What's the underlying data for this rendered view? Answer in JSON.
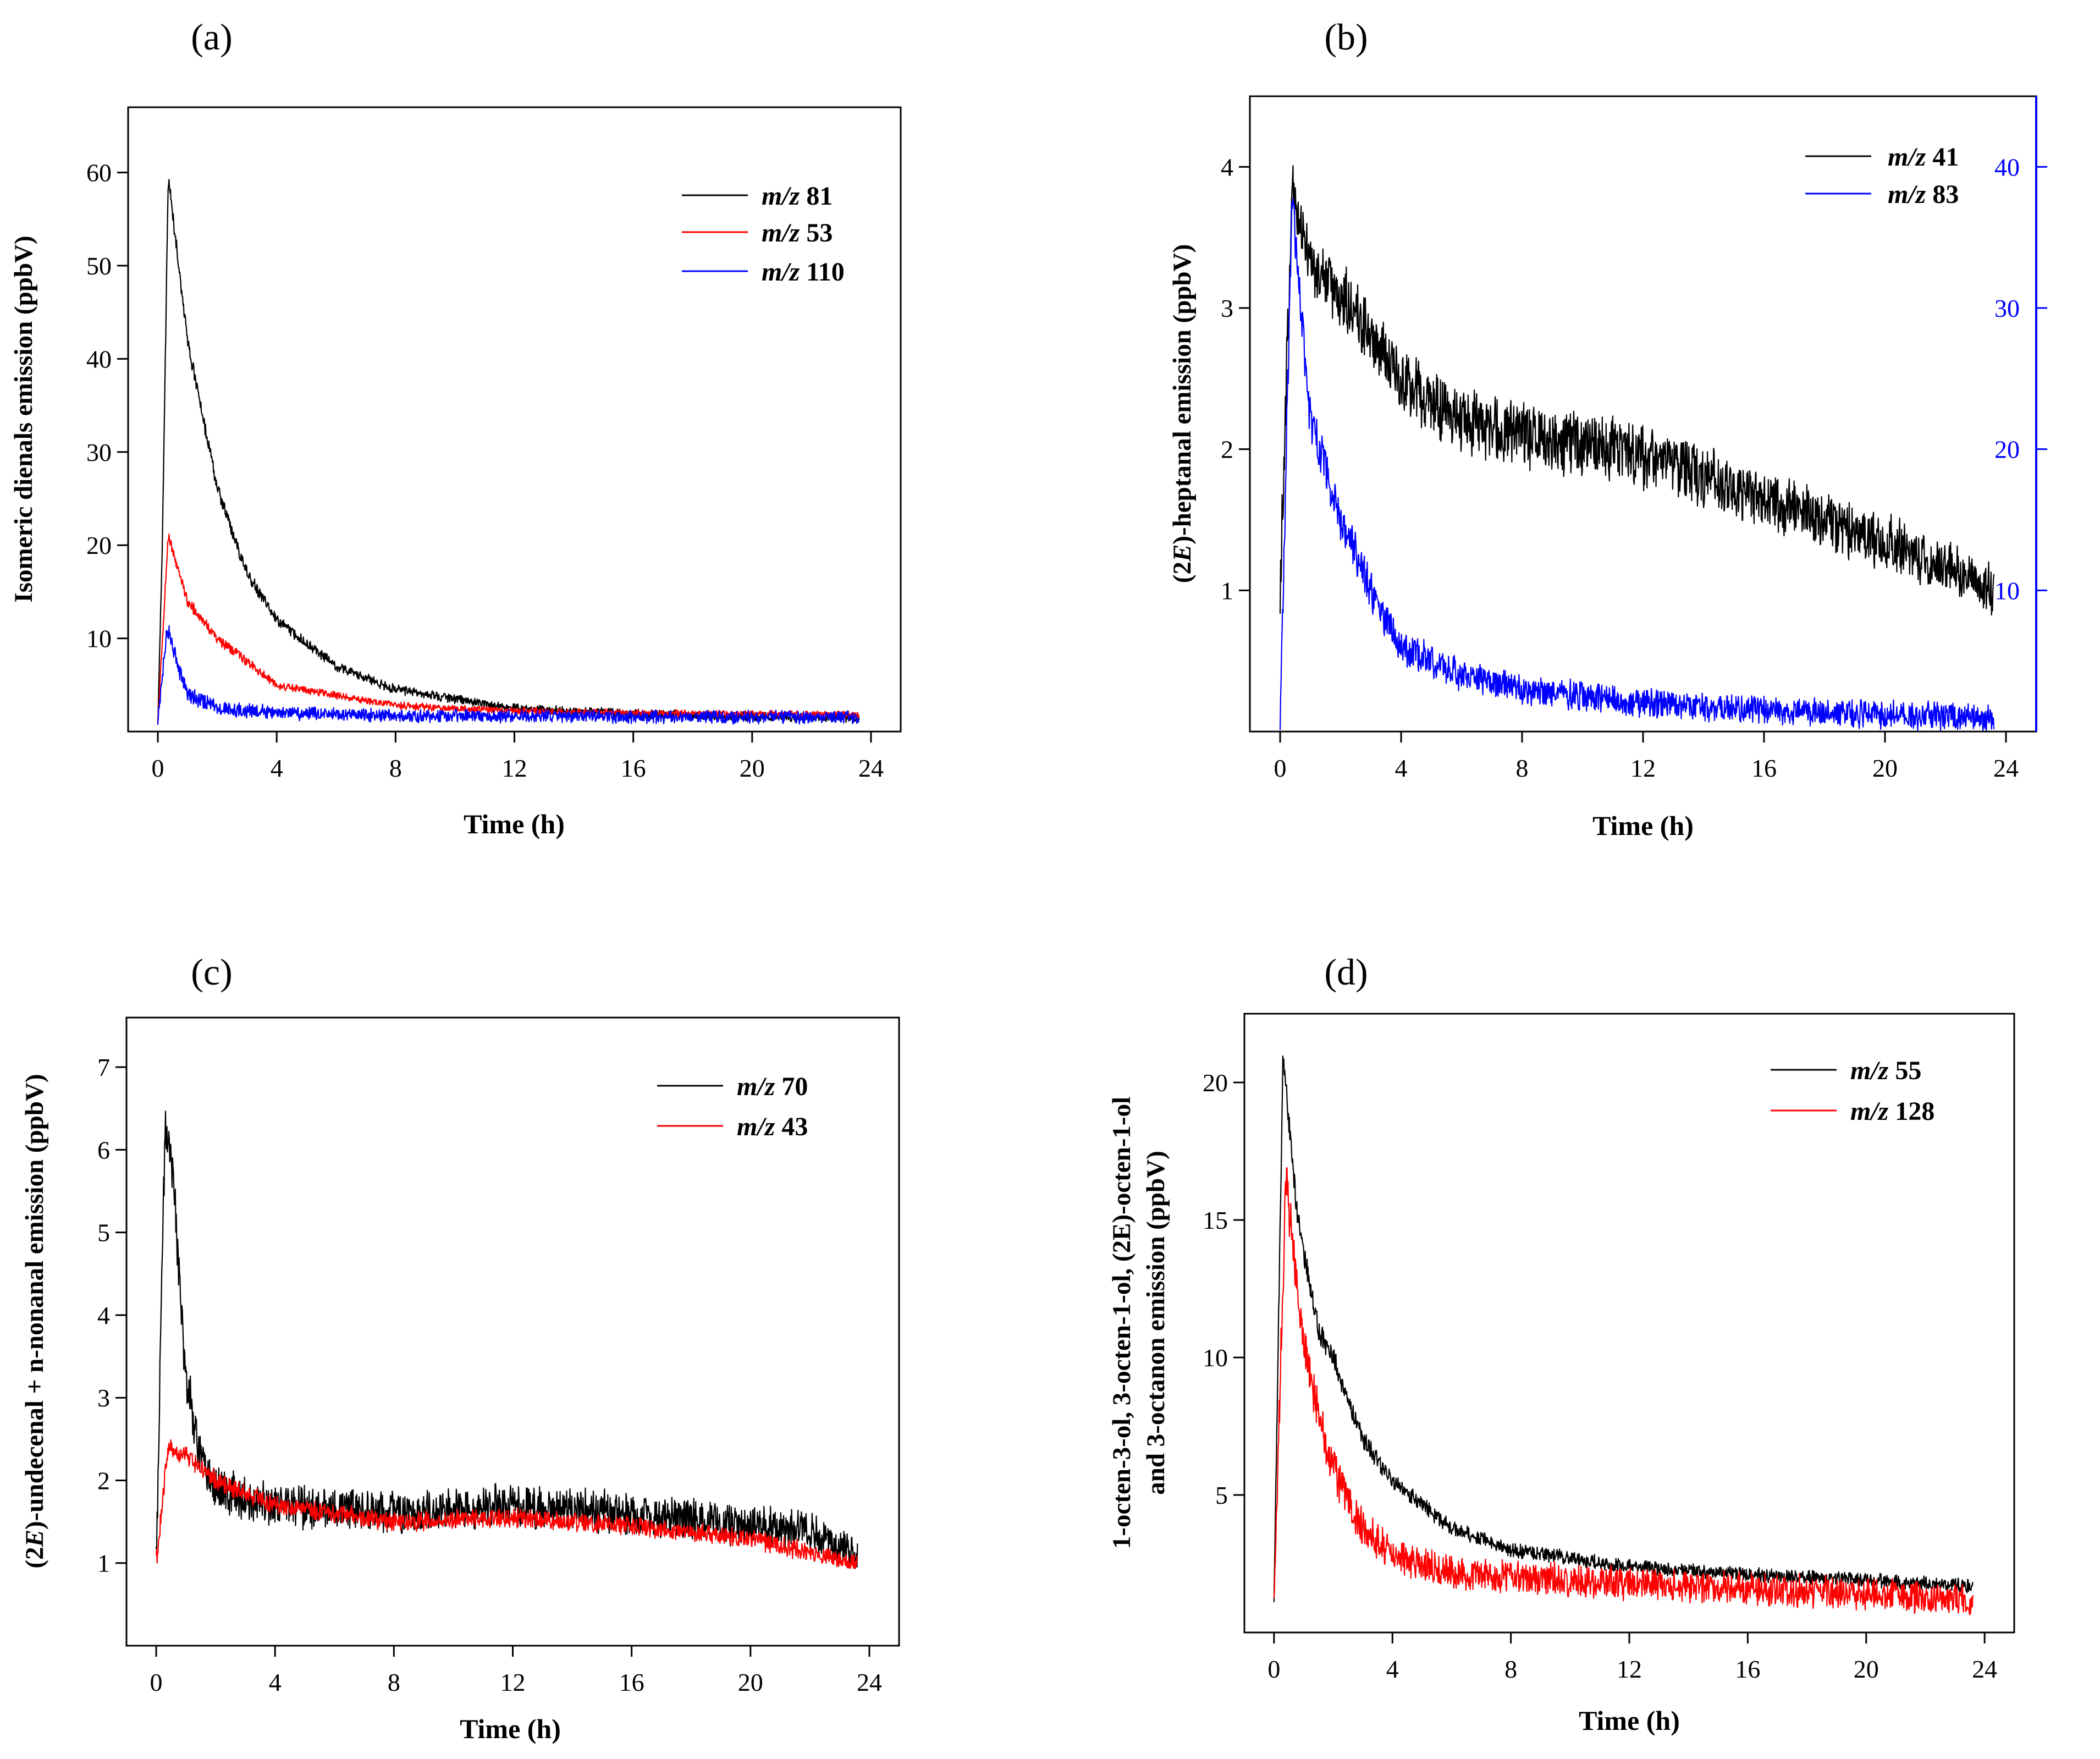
{
  "chart_data": [
    {
      "panel_label": "(a)",
      "type": "line",
      "xlabel": "Time (h)",
      "ylabel": "Isomeric dienals emission (ppbV)",
      "xlim": [
        -1,
        25
      ],
      "ylim": [
        0,
        67
      ],
      "xticks": [
        0,
        4,
        8,
        12,
        16,
        20,
        24
      ],
      "yticks": [
        10,
        20,
        30,
        40,
        50,
        60
      ],
      "legend_position": "top-right",
      "series": [
        {
          "name_prefix": "m/z",
          "name_value": "81",
          "color": "#000000",
          "axis": "left",
          "baseline": 1.0,
          "peak": 59.5,
          "peak_time": 0.35,
          "end": 1.5,
          "tau": 2.2,
          "noise": 0.7,
          "x": [
            0,
            0.15,
            0.35,
            1,
            2,
            3,
            4,
            6,
            8,
            12,
            16,
            20,
            23.6
          ],
          "y": [
            1,
            20,
            59.5,
            42,
            26,
            17,
            12,
            7,
            4.5,
            2.5,
            1.9,
            1.6,
            1.5
          ]
        },
        {
          "name_prefix": "m/z",
          "name_value": "53",
          "color": "#ff0000",
          "axis": "left",
          "baseline": 1.0,
          "peak": 21,
          "peak_time": 0.35,
          "end": 1.8,
          "tau": 2.0,
          "noise": 0.5,
          "x": [
            0,
            0.35,
            1,
            2,
            4,
            8,
            12,
            16,
            20,
            23.6
          ],
          "y": [
            1,
            21,
            14,
            10,
            5,
            2.8,
            2.2,
            2.0,
            1.9,
            1.8
          ]
        },
        {
          "name_prefix": "m/z",
          "name_value": "110",
          "color": "#0000ff",
          "axis": "left",
          "baseline": 1.0,
          "peak": 11,
          "peak_time": 0.3,
          "end": 1.5,
          "tau": 0.7,
          "noise": 0.9,
          "x": [
            0,
            0.3,
            1,
            2,
            4,
            8,
            16,
            23.6
          ],
          "y": [
            1,
            11,
            4,
            2.5,
            2,
            1.7,
            1.6,
            1.5
          ]
        }
      ]
    },
    {
      "panel_label": "(b)",
      "type": "line",
      "xlabel": "Time (h)",
      "ylabel_prefix": "(2",
      "ylabel_italic": "E",
      "ylabel_suffix": ")-heptanal emission (ppbV)",
      "xlim": [
        -1,
        25
      ],
      "ylim": [
        0,
        4.5
      ],
      "y2lim": [
        0,
        45
      ],
      "xticks": [
        0,
        4,
        8,
        12,
        16,
        20,
        24
      ],
      "yticks": [
        1,
        2,
        3,
        4
      ],
      "y2ticks": [
        10,
        20,
        30,
        40
      ],
      "y2color": "#0000ff",
      "legend_position": "top-right",
      "series": [
        {
          "name_prefix": "m/z",
          "name_value": "41",
          "color": "#000000",
          "axis": "left",
          "baseline": 1.0,
          "peak": 3.9,
          "peak_time": 0.4,
          "end": 1.0,
          "tau": 0,
          "noise": 0.2,
          "x": [
            0,
            0.4,
            1,
            2,
            4,
            6,
            8,
            12,
            16,
            20,
            23.6
          ],
          "y": [
            1.0,
            3.9,
            3.3,
            3.1,
            2.5,
            2.2,
            2.1,
            1.95,
            1.65,
            1.35,
            1.0
          ]
        },
        {
          "name_prefix": "m/z",
          "name_value": "83",
          "color": "#0000ff",
          "axis": "right",
          "baseline": 1,
          "peak": 38,
          "peak_time": 0.4,
          "end": 1,
          "tau": 1.6,
          "noise": 1.5,
          "x": [
            0,
            0.4,
            1,
            2,
            3,
            4,
            6,
            8,
            12,
            16,
            20,
            23.6
          ],
          "y": [
            1,
            38,
            22,
            15,
            10,
            6,
            4,
            3,
            2,
            1.5,
            1.2,
            1
          ]
        }
      ]
    },
    {
      "panel_label": "(c)",
      "type": "line",
      "xlabel": "Time (h)",
      "ylabel_prefix": "(2",
      "ylabel_italic": "E",
      "ylabel_suffix": ")-undecenal + n-nonanal emission (ppbV)",
      "xlim": [
        -1,
        25
      ],
      "ylim": [
        0,
        7.6
      ],
      "xticks": [
        0,
        4,
        8,
        12,
        16,
        20,
        24
      ],
      "yticks": [
        1,
        2,
        3,
        4,
        5,
        6,
        7
      ],
      "legend_position": "top-right",
      "series": [
        {
          "name_prefix": "m/z",
          "name_value": "70",
          "color": "#000000",
          "axis": "left",
          "baseline": 1.0,
          "peak": 6.3,
          "peak_time": 0.3,
          "end": 1.1,
          "tau": 0,
          "noise": 0.28,
          "x": [
            0,
            0.3,
            0.6,
            1,
            1.5,
            2,
            4,
            8,
            12,
            16,
            20,
            22,
            23.6
          ],
          "y": [
            1.0,
            6.3,
            5.5,
            3.2,
            2.3,
            1.9,
            1.7,
            1.6,
            1.7,
            1.6,
            1.45,
            1.4,
            1.1
          ]
        },
        {
          "name_prefix": "m/z",
          "name_value": "43",
          "color": "#ff0000",
          "axis": "left",
          "baseline": 1.0,
          "peak": 2.4,
          "peak_time": 0.4,
          "end": 1.0,
          "tau": 0,
          "noise": 0.1,
          "x": [
            0,
            0.4,
            1,
            2,
            4,
            8,
            12,
            16,
            20,
            23.6
          ],
          "y": [
            1.0,
            2.4,
            2.3,
            2.0,
            1.7,
            1.5,
            1.55,
            1.45,
            1.3,
            1.0
          ]
        }
      ]
    },
    {
      "panel_label": "(d)",
      "type": "line",
      "xlabel": "Time (h)",
      "ylabel_line1": "1-octen-3-ol, 3-octen-1-ol, (2E)-octen-1-ol",
      "ylabel_line2": "and 3-octanon emission (ppbV)",
      "xlim": [
        -1,
        25
      ],
      "ylim": [
        0,
        22.5
      ],
      "xticks": [
        0,
        4,
        8,
        12,
        16,
        20,
        24
      ],
      "yticks": [
        5,
        10,
        15,
        20
      ],
      "legend_position": "top-right",
      "series": [
        {
          "name_prefix": "m/z",
          "name_value": "55",
          "color": "#000000",
          "axis": "left",
          "baseline": 1.0,
          "peak": 21,
          "peak_time": 0.3,
          "end": 1.7,
          "tau": 0,
          "noise": 0.35,
          "x": [
            0,
            0.3,
            0.8,
            1.5,
            2,
            3,
            4,
            6,
            8,
            12,
            16,
            20,
            23.6
          ],
          "y": [
            1.0,
            21,
            15,
            11,
            10,
            7,
            5.5,
            3.8,
            3.0,
            2.4,
            2.1,
            1.9,
            1.7
          ]
        },
        {
          "name_prefix": "m/z",
          "name_value": "128",
          "color": "#ff0000",
          "axis": "left",
          "baseline": 1.0,
          "peak": 16.5,
          "peak_time": 0.4,
          "end": 1.2,
          "tau": 0,
          "noise": 0.8,
          "x": [
            0,
            0.4,
            1,
            1.5,
            2,
            3,
            4,
            6,
            8,
            12,
            16,
            20,
            23.6
          ],
          "y": [
            1.0,
            16.5,
            10.5,
            8,
            6,
            3.8,
            2.8,
            2.2,
            2.0,
            1.8,
            1.6,
            1.4,
            1.2
          ]
        }
      ]
    }
  ]
}
